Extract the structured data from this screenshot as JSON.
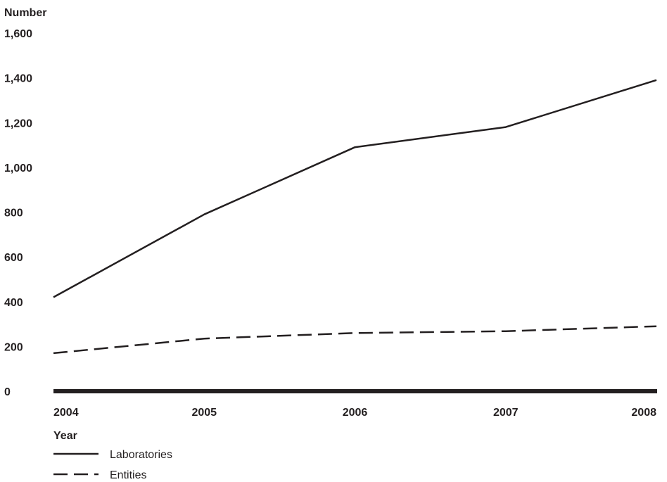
{
  "chart_data": {
    "type": "line",
    "ylabel": "Number",
    "xlabel": "Year",
    "x": [
      "2004",
      "2005",
      "2006",
      "2007",
      "2008"
    ],
    "ylim": [
      0,
      1600
    ],
    "yticks": [
      0,
      200,
      400,
      600,
      800,
      1000,
      1200,
      1400,
      1600
    ],
    "ytick_labels": [
      "0",
      "200",
      "400",
      "600",
      "800",
      "1,000",
      "1,200",
      "1,400",
      "1,600"
    ],
    "grid": false,
    "legend_position": "bottom-left",
    "series": [
      {
        "name": "Laboratories",
        "style": "solid",
        "color": "#231f20",
        "values": [
          420,
          790,
          1090,
          1180,
          1390
        ]
      },
      {
        "name": "Entities",
        "style": "dashed",
        "color": "#231f20",
        "values": [
          170,
          235,
          260,
          268,
          290
        ]
      }
    ]
  }
}
